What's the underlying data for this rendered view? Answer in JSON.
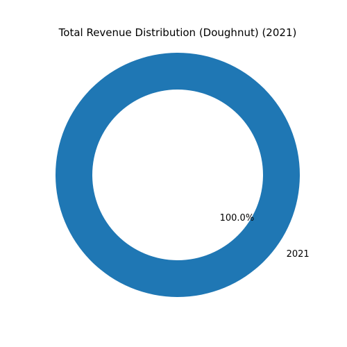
{
  "chart_data": {
    "type": "pie",
    "style": "doughnut",
    "title": "Total Revenue Distribution (Doughnut) (2021)",
    "slices": [
      {
        "label": "2021",
        "value": 100,
        "pct_label": "100.0%",
        "color": "#1f77b4"
      }
    ]
  }
}
